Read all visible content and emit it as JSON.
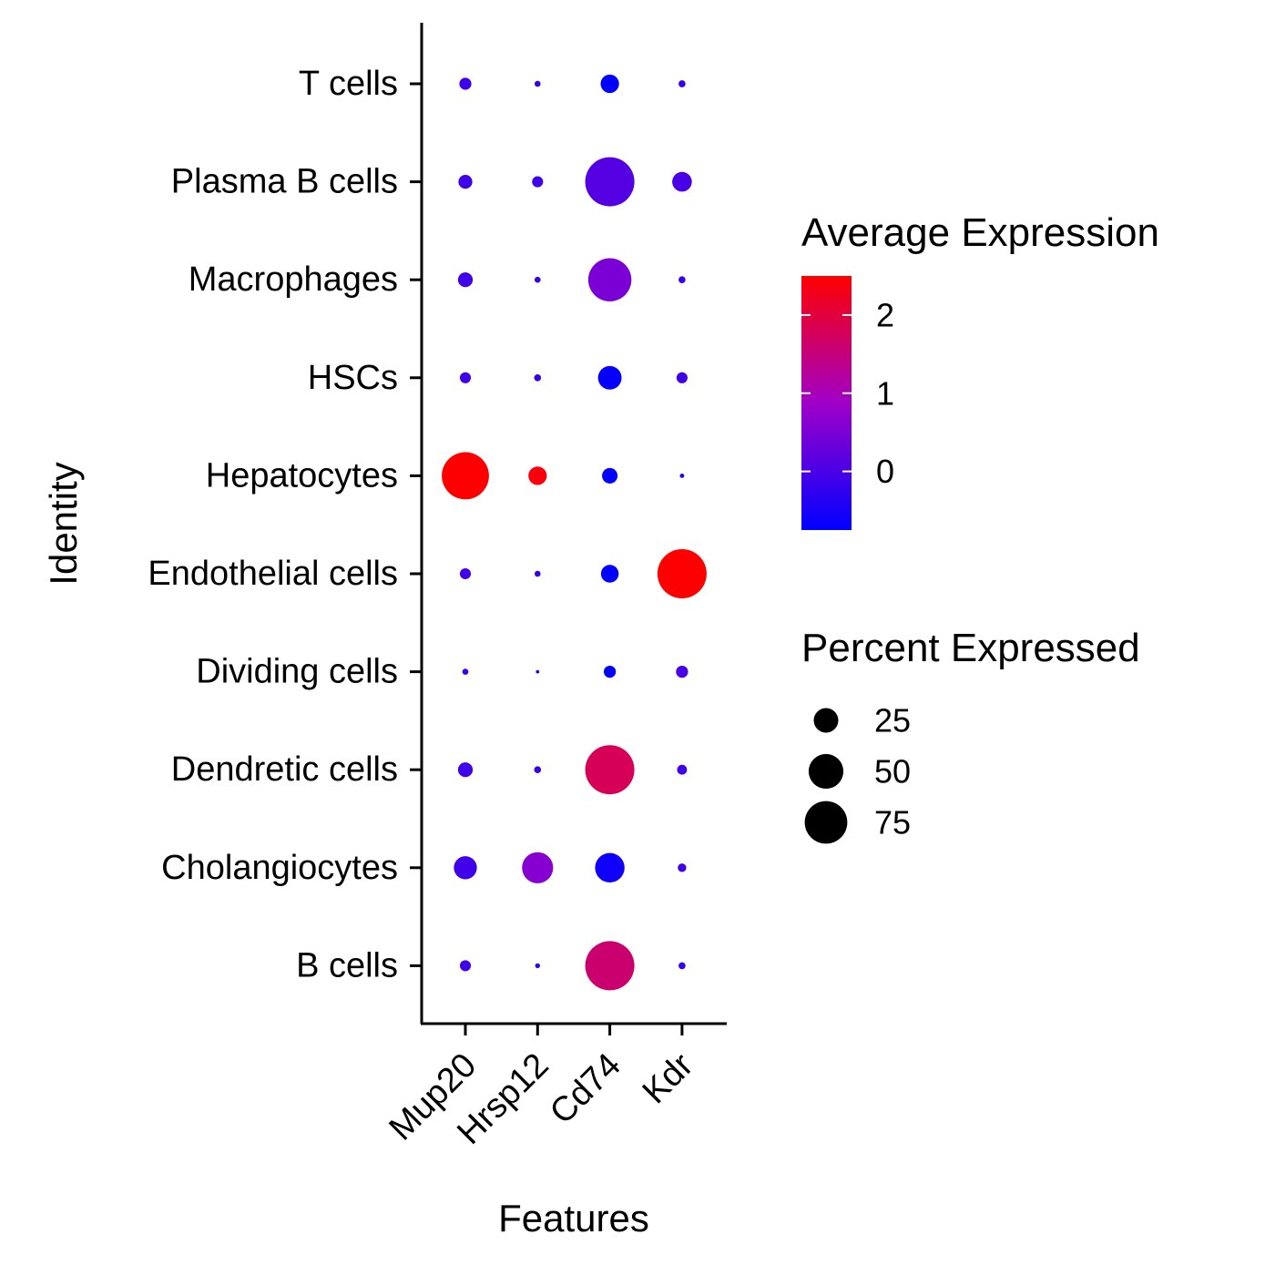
{
  "chart_data": {
    "type": "dot",
    "title": "",
    "xlabel": "Features",
    "ylabel": "Identity",
    "features": [
      "Mup20",
      "Hrsp12",
      "Cd74",
      "Kdr"
    ],
    "identities": [
      "T cells",
      "Plasma B cells",
      "Macrophages",
      "HSCs",
      "Hepatocytes",
      "Endothelial cells",
      "Dividing cells",
      "Dendretic cells",
      "Cholangiocytes",
      "B cells"
    ],
    "points": [
      {
        "identity": "T cells",
        "feature": "Mup20",
        "avg_exp": -0.1,
        "pct": 6
      },
      {
        "identity": "T cells",
        "feature": "Hrsp12",
        "avg_exp": -0.2,
        "pct": 1.5
      },
      {
        "identity": "T cells",
        "feature": "Cd74",
        "avg_exp": -0.9,
        "pct": 14
      },
      {
        "identity": "T cells",
        "feature": "Kdr",
        "avg_exp": -0.2,
        "pct": 2
      },
      {
        "identity": "Plasma B cells",
        "feature": "Mup20",
        "avg_exp": -0.1,
        "pct": 8
      },
      {
        "identity": "Plasma B cells",
        "feature": "Hrsp12",
        "avg_exp": -0.1,
        "pct": 5
      },
      {
        "identity": "Plasma B cells",
        "feature": "Cd74",
        "avg_exp": 0.1,
        "pct": 100
      },
      {
        "identity": "Plasma B cells",
        "feature": "Kdr",
        "avg_exp": 0.0,
        "pct": 16
      },
      {
        "identity": "Macrophages",
        "feature": "Mup20",
        "avg_exp": -0.1,
        "pct": 9
      },
      {
        "identity": "Macrophages",
        "feature": "Hrsp12",
        "avg_exp": -0.2,
        "pct": 1.5
      },
      {
        "identity": "Macrophages",
        "feature": "Cd74",
        "avg_exp": 0.5,
        "pct": 77
      },
      {
        "identity": "Macrophages",
        "feature": "Kdr",
        "avg_exp": -0.2,
        "pct": 2
      },
      {
        "identity": "HSCs",
        "feature": "Mup20",
        "avg_exp": -0.1,
        "pct": 5
      },
      {
        "identity": "HSCs",
        "feature": "Hrsp12",
        "avg_exp": -0.2,
        "pct": 2
      },
      {
        "identity": "HSCs",
        "feature": "Cd74",
        "avg_exp": -0.7,
        "pct": 23
      },
      {
        "identity": "HSCs",
        "feature": "Kdr",
        "avg_exp": -0.1,
        "pct": 5
      },
      {
        "identity": "Hepatocytes",
        "feature": "Mup20",
        "avg_exp": 2.5,
        "pct": 92
      },
      {
        "identity": "Hepatocytes",
        "feature": "Hrsp12",
        "avg_exp": 2.4,
        "pct": 14
      },
      {
        "identity": "Hepatocytes",
        "feature": "Cd74",
        "avg_exp": -0.7,
        "pct": 10
      },
      {
        "identity": "Hepatocytes",
        "feature": "Kdr",
        "avg_exp": -0.3,
        "pct": 0.8
      },
      {
        "identity": "Endothelial cells",
        "feature": "Mup20",
        "avg_exp": -0.1,
        "pct": 5
      },
      {
        "identity": "Endothelial cells",
        "feature": "Hrsp12",
        "avg_exp": -0.2,
        "pct": 1.5
      },
      {
        "identity": "Endothelial cells",
        "feature": "Cd74",
        "avg_exp": -0.8,
        "pct": 13
      },
      {
        "identity": "Endothelial cells",
        "feature": "Kdr",
        "avg_exp": 2.5,
        "pct": 100
      },
      {
        "identity": "Dividing cells",
        "feature": "Mup20",
        "avg_exp": -0.2,
        "pct": 1.5
      },
      {
        "identity": "Dividing cells",
        "feature": "Hrsp12",
        "avg_exp": -0.3,
        "pct": 0.5
      },
      {
        "identity": "Dividing cells",
        "feature": "Cd74",
        "avg_exp": -0.8,
        "pct": 6
      },
      {
        "identity": "Dividing cells",
        "feature": "Kdr",
        "avg_exp": 0.0,
        "pct": 6
      },
      {
        "identity": "Dendretic cells",
        "feature": "Mup20",
        "avg_exp": -0.1,
        "pct": 9
      },
      {
        "identity": "Dendretic cells",
        "feature": "Hrsp12",
        "avg_exp": -0.2,
        "pct": 2
      },
      {
        "identity": "Dendretic cells",
        "feature": "Cd74",
        "avg_exp": 1.8,
        "pct": 100
      },
      {
        "identity": "Dendretic cells",
        "feature": "Kdr",
        "avg_exp": -0.1,
        "pct": 4
      },
      {
        "identity": "Cholangiocytes",
        "feature": "Mup20",
        "avg_exp": -0.1,
        "pct": 22
      },
      {
        "identity": "Cholangiocytes",
        "feature": "Hrsp12",
        "avg_exp": 0.6,
        "pct": 40
      },
      {
        "identity": "Cholangiocytes",
        "feature": "Cd74",
        "avg_exp": -0.6,
        "pct": 36
      },
      {
        "identity": "Cholangiocytes",
        "feature": "Kdr",
        "avg_exp": -0.1,
        "pct": 3
      },
      {
        "identity": "B cells",
        "feature": "Mup20",
        "avg_exp": -0.1,
        "pct": 5
      },
      {
        "identity": "B cells",
        "feature": "Hrsp12",
        "avg_exp": -0.2,
        "pct": 1
      },
      {
        "identity": "B cells",
        "feature": "Cd74",
        "avg_exp": 1.6,
        "pct": 100
      },
      {
        "identity": "B cells",
        "feature": "Kdr",
        "avg_exp": -0.2,
        "pct": 2
      }
    ],
    "color_legend": {
      "title": "Average Expression",
      "range": [
        -0.75,
        2.5
      ],
      "low_color": "#0000FF",
      "high_color": "#FF0000",
      "ticks": [
        2,
        1,
        0
      ],
      "tick_labels": [
        "2",
        "1",
        "0"
      ]
    },
    "size_legend": {
      "title": "Percent Expressed",
      "values": [
        25,
        50,
        75
      ],
      "labels": [
        "25",
        "50",
        "75"
      ]
    },
    "grid": false,
    "legend_position": "right"
  }
}
